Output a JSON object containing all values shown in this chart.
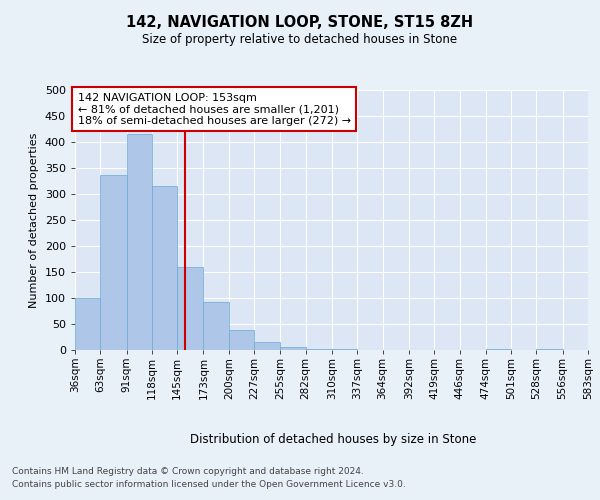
{
  "title": "142, NAVIGATION LOOP, STONE, ST15 8ZH",
  "subtitle": "Size of property relative to detached houses in Stone",
  "xlabel": "Distribution of detached houses by size in Stone",
  "ylabel": "Number of detached properties",
  "footer_line1": "Contains HM Land Registry data © Crown copyright and database right 2024.",
  "footer_line2": "Contains public sector information licensed under the Open Government Licence v3.0.",
  "annotation_line1": "142 NAVIGATION LOOP: 153sqm",
  "annotation_line2": "← 81% of detached houses are smaller (1,201)",
  "annotation_line3": "18% of semi-detached houses are larger (272) →",
  "bar_color": "#aec6e8",
  "bar_edge_color": "#6aaad4",
  "vline_color": "#cc0000",
  "vline_x": 153,
  "background_color": "#e8f0f8",
  "plot_bg_color": "#dce6f5",
  "grid_color": "#ffffff",
  "bin_edges": [
    36,
    63,
    91,
    118,
    145,
    173,
    200,
    227,
    255,
    282,
    310,
    337,
    364,
    392,
    419,
    446,
    474,
    501,
    528,
    556,
    583
  ],
  "bin_counts": [
    100,
    337,
    416,
    315,
    160,
    92,
    39,
    16,
    6,
    2,
    1,
    0,
    0,
    0,
    0,
    0,
    1,
    0,
    1,
    0
  ],
  "ylim": [
    0,
    500
  ],
  "yticks": [
    0,
    50,
    100,
    150,
    200,
    250,
    300,
    350,
    400,
    450,
    500
  ],
  "tick_labels": [
    "36sqm",
    "63sqm",
    "91sqm",
    "118sqm",
    "145sqm",
    "173sqm",
    "200sqm",
    "227sqm",
    "255sqm",
    "282sqm",
    "310sqm",
    "337sqm",
    "364sqm",
    "392sqm",
    "419sqm",
    "446sqm",
    "474sqm",
    "501sqm",
    "528sqm",
    "556sqm",
    "583sqm"
  ]
}
